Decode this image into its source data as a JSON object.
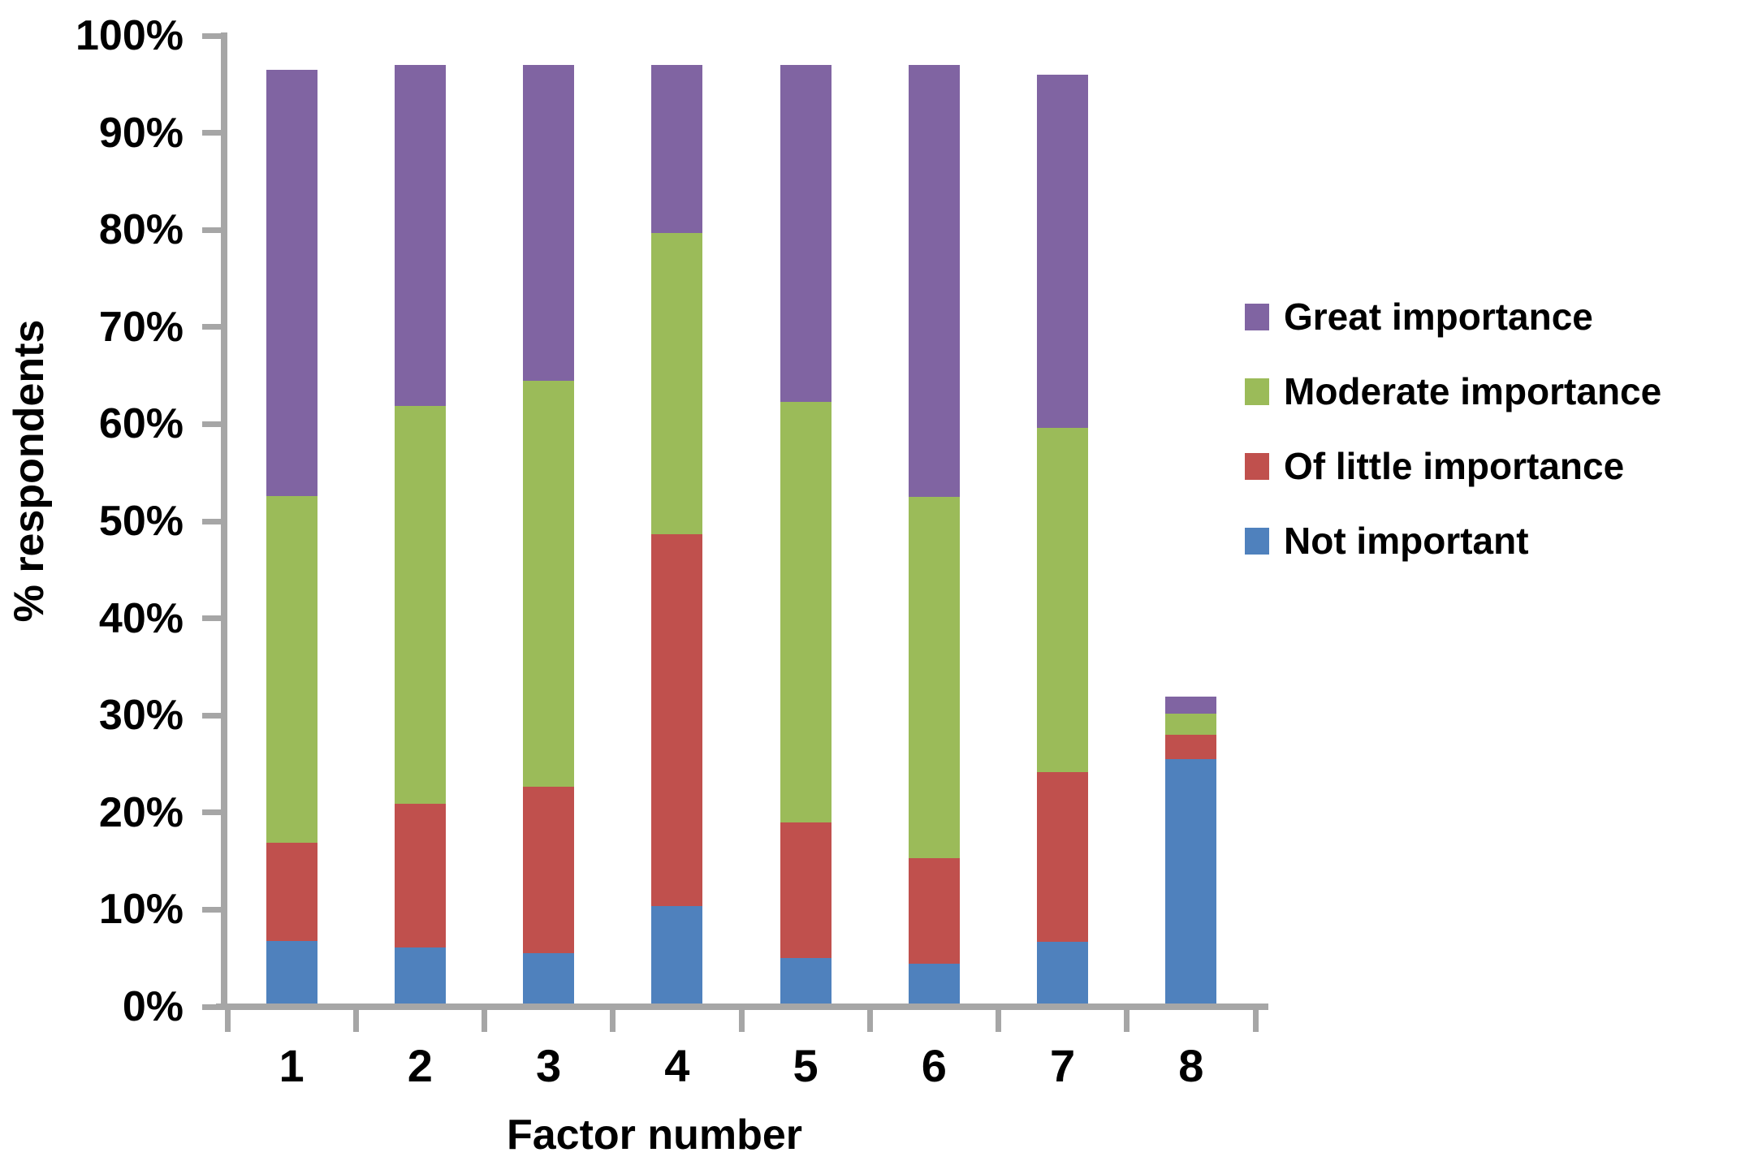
{
  "chart_data": {
    "type": "bar",
    "stacked": true,
    "xlabel": "Factor number",
    "ylabel": "% respondents",
    "categories": [
      "1",
      "2",
      "3",
      "4",
      "5",
      "6",
      "7",
      "8"
    ],
    "series": [
      {
        "name": "Not important",
        "color": "#4F81BD",
        "values": [
          6.8,
          6.1,
          5.5,
          10.4,
          5.0,
          4.4,
          6.7,
          25.5
        ]
      },
      {
        "name": "Of little importance",
        "color": "#C0504D",
        "values": [
          10.1,
          14.8,
          17.2,
          38.3,
          14.0,
          10.9,
          17.5,
          2.5
        ]
      },
      {
        "name": "Moderate importance",
        "color": "#9BBB59",
        "values": [
          35.7,
          41.0,
          41.8,
          31.0,
          43.3,
          37.2,
          35.4,
          2.2
        ]
      },
      {
        "name": "Great importance",
        "color": "#8064A2",
        "values": [
          43.9,
          35.1,
          32.5,
          17.3,
          34.7,
          44.5,
          36.4,
          1.7
        ]
      }
    ],
    "bar_totals_pct": [
      96.5,
      97.0,
      97.0,
      97.0,
      97.0,
      97.0,
      96.0,
      31.9
    ],
    "y_ticks": [
      "0%",
      "10%",
      "20%",
      "30%",
      "40%",
      "50%",
      "60%",
      "70%",
      "80%",
      "90%",
      "100%"
    ],
    "ylim": [
      0,
      100
    ],
    "grid": false,
    "legend_position": "right",
    "legend_order": [
      "Great importance",
      "Moderate importance",
      "Of little importance",
      "Not important"
    ],
    "axis_color": "#A6A6A6",
    "text_color": "#000000"
  }
}
